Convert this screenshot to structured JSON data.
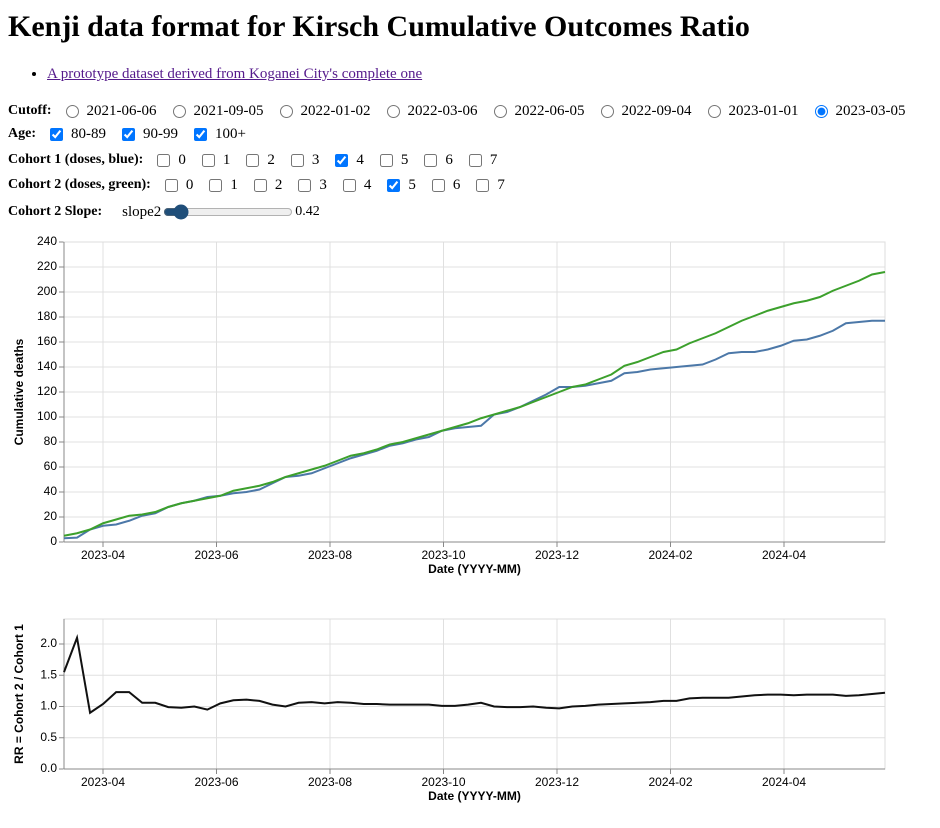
{
  "header": {
    "title": "Kenji data format for Kirsch Cumulative Outcomes Ratio"
  },
  "links": [
    "A prototype dataset derived from Koganei City's complete one"
  ],
  "controls": {
    "cutoff": {
      "label": "Cutoff:",
      "options": [
        "2021-06-06",
        "2021-09-05",
        "2022-01-02",
        "2022-03-06",
        "2022-06-05",
        "2022-09-04",
        "2023-01-01",
        "2023-03-05"
      ],
      "selected": 7
    },
    "age": {
      "label": "Age:",
      "options": [
        "80-89",
        "90-99",
        "100+"
      ],
      "checked": [
        true,
        true,
        true
      ]
    },
    "cohort1": {
      "label": "Cohort 1 (doses, blue):",
      "options": [
        "0",
        "1",
        "2",
        "3",
        "4",
        "5",
        "6",
        "7"
      ],
      "checked": [
        false,
        false,
        false,
        false,
        true,
        false,
        false,
        false
      ]
    },
    "cohort2": {
      "label": "Cohort 2 (doses, green):",
      "options": [
        "0",
        "1",
        "2",
        "3",
        "4",
        "5",
        "6",
        "7"
      ],
      "checked": [
        false,
        false,
        false,
        false,
        false,
        true,
        false,
        false
      ]
    },
    "slope": {
      "label": "Cohort 2 Slope:",
      "name": "slope2",
      "value": 0.42
    }
  },
  "chart_data": [
    {
      "type": "line",
      "y_label": "Cumulative deaths",
      "x_label": "Date (YYYY-MM)",
      "xticks": [
        "2023-04",
        "2023-06",
        "2023-08",
        "2023-10",
        "2023-12",
        "2024-02",
        "2024-04"
      ],
      "ylim": [
        0,
        240
      ],
      "yticks": [
        0,
        20,
        40,
        60,
        80,
        100,
        120,
        140,
        160,
        180,
        200,
        220,
        240
      ],
      "grid": true,
      "series": [
        {
          "color": "#4c78a8",
          "values": [
            3,
            3.5,
            10,
            13,
            14,
            17,
            21,
            23,
            28,
            31,
            33,
            36,
            37,
            39,
            40,
            42,
            47,
            52,
            53,
            55,
            59,
            63,
            67,
            70,
            73,
            77,
            79,
            82,
            84,
            89,
            91,
            92,
            93,
            102,
            104,
            108,
            113,
            118,
            124,
            124,
            125,
            127,
            129,
            135,
            136,
            138,
            139,
            140,
            141,
            142,
            146,
            151,
            152,
            152,
            154,
            157,
            161,
            162,
            165,
            169,
            175,
            176,
            177,
            177
          ]
        },
        {
          "color": "#3ca02c",
          "values": [
            5,
            7,
            10,
            15,
            18,
            21,
            22,
            24,
            28,
            31,
            33,
            35,
            37,
            41,
            43,
            45,
            48,
            52,
            55,
            58,
            61,
            65,
            69,
            71,
            74,
            78,
            80,
            83,
            86,
            89,
            92,
            95,
            99,
            102,
            105,
            108,
            112,
            116,
            120,
            124,
            126,
            130,
            134,
            141,
            144,
            148,
            152,
            154,
            159,
            163,
            167,
            172,
            177,
            181,
            185,
            188,
            191,
            193,
            196,
            201,
            205,
            209,
            214,
            216
          ]
        }
      ]
    },
    {
      "type": "line",
      "y_label": "RR = Cohort 2 / Cohort 1",
      "x_label": "Date (YYYY-MM)",
      "xticks": [
        "2023-04",
        "2023-06",
        "2023-08",
        "2023-10",
        "2023-12",
        "2024-02",
        "2024-04"
      ],
      "ylim": [
        0,
        2.4
      ],
      "yticks": [
        {
          "value": 0,
          "label": "0.0"
        },
        0.5,
        {
          "value": 1,
          "label": "1.0"
        },
        1.5,
        {
          "value": 2,
          "label": "2.0"
        }
      ],
      "grid": true,
      "series": [
        {
          "color": "#111111",
          "values": [
            1.55,
            2.1,
            0.9,
            1.04,
            1.23,
            1.23,
            1.06,
            1.06,
            0.99,
            0.98,
            1.0,
            0.95,
            1.05,
            1.1,
            1.11,
            1.09,
            1.03,
            1.0,
            1.06,
            1.07,
            1.05,
            1.07,
            1.06,
            1.04,
            1.04,
            1.03,
            1.03,
            1.03,
            1.03,
            1.01,
            1.01,
            1.03,
            1.06,
            1.0,
            0.99,
            0.99,
            1.0,
            0.98,
            0.97,
            1.0,
            1.01,
            1.03,
            1.04,
            1.05,
            1.06,
            1.07,
            1.09,
            1.09,
            1.13,
            1.14,
            1.14,
            1.14,
            1.16,
            1.18,
            1.19,
            1.19,
            1.18,
            1.19,
            1.19,
            1.19,
            1.17,
            1.18,
            1.2,
            1.22
          ]
        }
      ]
    }
  ]
}
